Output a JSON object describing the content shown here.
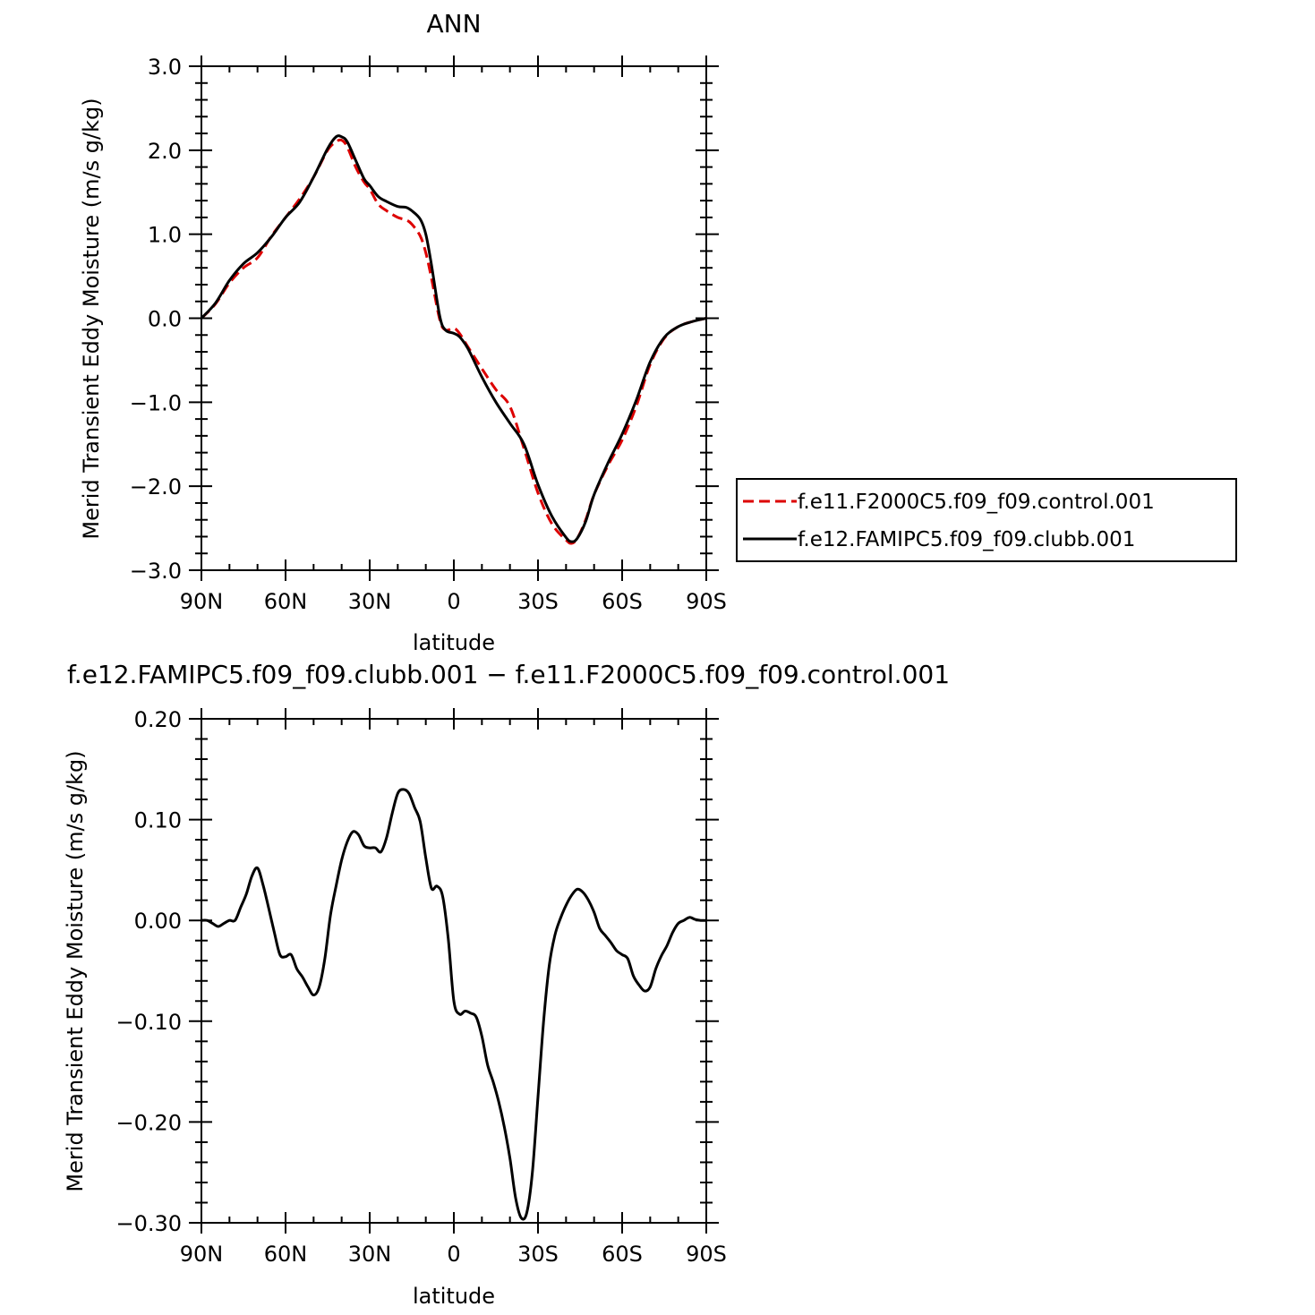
{
  "chart_data": [
    {
      "type": "line",
      "title": "ANN",
      "xlabel": "latitude",
      "ylabel": "Merid Transient Eddy Moisture (m/s g/kg)",
      "xlim": [
        -90,
        90
      ],
      "ylim": [
        -3.0,
        3.0
      ],
      "xticks": [
        {
          "v": -90,
          "label": "90N"
        },
        {
          "v": -60,
          "label": "60N"
        },
        {
          "v": -30,
          "label": "30N"
        },
        {
          "v": 0,
          "label": "0"
        },
        {
          "v": 30,
          "label": "30S"
        },
        {
          "v": 60,
          "label": "60S"
        },
        {
          "v": 90,
          "label": "90S"
        }
      ],
      "yticks": [
        {
          "v": 3.0,
          "label": "3.0"
        },
        {
          "v": 2.0,
          "label": "2.0"
        },
        {
          "v": 1.0,
          "label": "1.0"
        },
        {
          "v": 0.0,
          "label": "0.0"
        },
        {
          "v": -1.0,
          "label": "−1.0"
        },
        {
          "v": -2.0,
          "label": "−2.0"
        },
        {
          "v": -3.0,
          "label": "−3.0"
        }
      ],
      "legend_position": "right",
      "series": [
        {
          "name": "f.e11.F2000C5.f09_f09.control.001",
          "color": "#dd0000",
          "dash": "dashed",
          "x": [
            -90,
            -85,
            -80,
            -75,
            -70,
            -65,
            -60,
            -55,
            -50,
            -45,
            -42,
            -40,
            -38,
            -35,
            -32,
            -30,
            -27,
            -24,
            -20,
            -17,
            -15,
            -12,
            -10,
            -8,
            -5,
            -3,
            0,
            2,
            5,
            10,
            15,
            20,
            25,
            30,
            35,
            40,
            42,
            44,
            47,
            50,
            55,
            60,
            65,
            70,
            75,
            80,
            85,
            90
          ],
          "y": [
            0.0,
            0.17,
            0.42,
            0.6,
            0.72,
            0.98,
            1.2,
            1.42,
            1.68,
            2.0,
            2.1,
            2.12,
            2.04,
            1.8,
            1.62,
            1.54,
            1.36,
            1.28,
            1.2,
            1.17,
            1.12,
            0.98,
            0.78,
            0.48,
            -0.02,
            -0.14,
            -0.12,
            -0.18,
            -0.34,
            -0.6,
            -0.85,
            -1.05,
            -1.55,
            -2.08,
            -2.45,
            -2.64,
            -2.68,
            -2.62,
            -2.4,
            -2.1,
            -1.75,
            -1.45,
            -1.05,
            -0.55,
            -0.24,
            -0.1,
            -0.04,
            0.0
          ]
        },
        {
          "name": "f.e12.FAMIPC5.f09_f09.clubb.001",
          "color": "#000000",
          "dash": "solid",
          "x": [
            -90,
            -85,
            -80,
            -75,
            -70,
            -65,
            -60,
            -55,
            -50,
            -45,
            -42,
            -40,
            -38,
            -35,
            -32,
            -30,
            -27,
            -24,
            -20,
            -17,
            -15,
            -12,
            -10,
            -8,
            -5,
            -3,
            0,
            2,
            5,
            10,
            15,
            20,
            25,
            30,
            35,
            40,
            42,
            44,
            47,
            50,
            55,
            60,
            65,
            70,
            75,
            80,
            85,
            90
          ],
          "y": [
            0.0,
            0.18,
            0.45,
            0.65,
            0.78,
            0.97,
            1.2,
            1.38,
            1.68,
            2.02,
            2.16,
            2.16,
            2.1,
            1.88,
            1.66,
            1.58,
            1.45,
            1.39,
            1.33,
            1.32,
            1.28,
            1.18,
            1.0,
            0.64,
            0.02,
            -0.14,
            -0.18,
            -0.22,
            -0.36,
            -0.7,
            -1.0,
            -1.25,
            -1.5,
            -1.98,
            -2.36,
            -2.61,
            -2.66,
            -2.62,
            -2.42,
            -2.1,
            -1.72,
            -1.38,
            -0.98,
            -0.52,
            -0.23,
            -0.1,
            -0.04,
            0.0
          ]
        }
      ]
    },
    {
      "type": "line",
      "title": "f.e12.FAMIPC5.f09_f09.clubb.001 − f.e11.F2000C5.f09_f09.control.001",
      "xlabel": "latitude",
      "ylabel": "Merid Transient Eddy Moisture (m/s g/kg)",
      "xlim": [
        -90,
        90
      ],
      "ylim": [
        -0.3,
        0.2
      ],
      "xticks": [
        {
          "v": -90,
          "label": "90N"
        },
        {
          "v": -60,
          "label": "60N"
        },
        {
          "v": -30,
          "label": "30N"
        },
        {
          "v": 0,
          "label": "0"
        },
        {
          "v": 30,
          "label": "30S"
        },
        {
          "v": 60,
          "label": "60S"
        },
        {
          "v": 90,
          "label": "90S"
        }
      ],
      "yticks": [
        {
          "v": 0.2,
          "label": "0.20"
        },
        {
          "v": 0.1,
          "label": "0.10"
        },
        {
          "v": 0.0,
          "label": "0.00"
        },
        {
          "v": -0.1,
          "label": "−0.10"
        },
        {
          "v": -0.2,
          "label": "−0.20"
        },
        {
          "v": -0.3,
          "label": "−0.30"
        }
      ],
      "series": [
        {
          "color": "#000000",
          "dash": "solid",
          "x": [
            -90,
            -88,
            -86,
            -84,
            -82,
            -80,
            -78,
            -76,
            -74,
            -72,
            -70,
            -68,
            -66,
            -64,
            -62,
            -60,
            -58,
            -56,
            -54,
            -52,
            -50,
            -48,
            -46,
            -44,
            -42,
            -40,
            -38,
            -36,
            -34,
            -32,
            -30,
            -28,
            -26,
            -24,
            -22,
            -20,
            -18,
            -16,
            -14,
            -12,
            -10,
            -8,
            -6,
            -4,
            -2,
            0,
            2,
            4,
            6,
            8,
            10,
            12,
            14,
            16,
            18,
            20,
            22,
            24,
            26,
            28,
            30,
            32,
            34,
            36,
            38,
            40,
            42,
            44,
            46,
            48,
            50,
            52,
            54,
            56,
            58,
            60,
            62,
            64,
            66,
            68,
            70,
            72,
            74,
            76,
            78,
            80,
            82,
            84,
            86,
            88,
            90
          ],
          "y": [
            0.0,
            0.0,
            -0.003,
            -0.006,
            -0.003,
            0.0,
            0.0,
            0.013,
            0.026,
            0.044,
            0.052,
            0.035,
            0.012,
            -0.012,
            -0.034,
            -0.036,
            -0.034,
            -0.048,
            -0.056,
            -0.066,
            -0.074,
            -0.066,
            -0.038,
            0.005,
            0.034,
            0.06,
            0.078,
            0.088,
            0.085,
            0.074,
            0.072,
            0.072,
            0.068,
            0.082,
            0.106,
            0.126,
            0.13,
            0.126,
            0.112,
            0.098,
            0.062,
            0.032,
            0.034,
            0.024,
            -0.018,
            -0.08,
            -0.093,
            -0.09,
            -0.092,
            -0.096,
            -0.115,
            -0.143,
            -0.16,
            -0.18,
            -0.205,
            -0.236,
            -0.275,
            -0.295,
            -0.29,
            -0.25,
            -0.175,
            -0.1,
            -0.045,
            -0.015,
            0.002,
            0.015,
            0.025,
            0.031,
            0.028,
            0.02,
            0.008,
            -0.008,
            -0.015,
            -0.022,
            -0.03,
            -0.034,
            -0.038,
            -0.055,
            -0.064,
            -0.07,
            -0.066,
            -0.048,
            -0.035,
            -0.025,
            -0.012,
            -0.003,
            0.0,
            0.003,
            0.001,
            0.0,
            0.0
          ]
        }
      ]
    }
  ]
}
